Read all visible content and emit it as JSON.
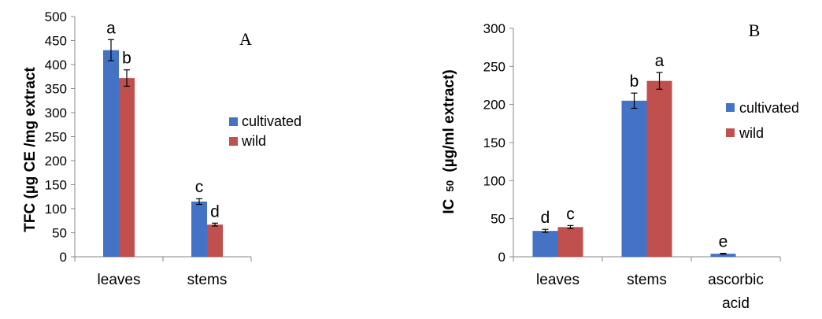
{
  "colors": {
    "cultivated": "#4472C4",
    "wild": "#C0504D"
  },
  "chart_data": [
    {
      "type": "bar",
      "panel_label": "A",
      "ylabel": "TFC (µg CE /mg extract",
      "xlabel": "",
      "categories": [
        "leaves",
        "stems"
      ],
      "ylim": [
        0,
        500
      ],
      "yticks": [
        0,
        50,
        100,
        150,
        200,
        250,
        300,
        350,
        400,
        450,
        500
      ],
      "grid": false,
      "legend_position": "right",
      "series": [
        {
          "name": "cultivated",
          "values": [
            430,
            115
          ],
          "errors": [
            22,
            6
          ],
          "letters": [
            "a",
            "c"
          ]
        },
        {
          "name": "wild",
          "values": [
            372,
            67
          ],
          "errors": [
            17,
            3
          ],
          "letters": [
            "b",
            "d"
          ]
        }
      ]
    },
    {
      "type": "bar",
      "panel_label": "B",
      "ylabel_main": "IC",
      "ylabel_sub": "50",
      "ylabel_rest": "(µg/ml extract)",
      "xlabel": "",
      "categories": [
        "leaves",
        "stems",
        "ascorbic acid"
      ],
      "ylim": [
        0,
        300
      ],
      "yticks": [
        0,
        50,
        100,
        150,
        200,
        250,
        300
      ],
      "grid": false,
      "legend_position": "right",
      "series": [
        {
          "name": "cultivated",
          "values": [
            34,
            205,
            4
          ],
          "errors": [
            2,
            10,
            0.5
          ],
          "letters": [
            "d",
            "b",
            "e"
          ]
        },
        {
          "name": "wild",
          "values": [
            39,
            231,
            null
          ],
          "errors": [
            2,
            11,
            null
          ],
          "letters": [
            "c",
            "a",
            ""
          ]
        }
      ]
    }
  ]
}
